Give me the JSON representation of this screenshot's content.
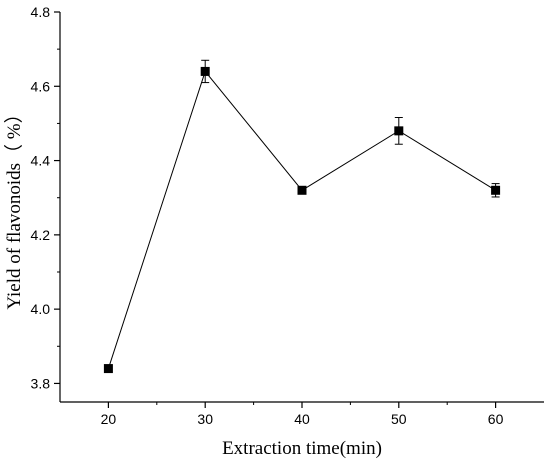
{
  "chart_data": {
    "type": "line",
    "title": "",
    "xlabel": "Extraction time(min)",
    "ylabel": "Yield of flavonoids（ %）",
    "x": [
      20,
      30,
      40,
      50,
      60
    ],
    "y": [
      3.84,
      4.64,
      4.32,
      4.48,
      4.32
    ],
    "y_error": [
      0,
      0.03,
      0.01,
      0.036,
      0.018
    ],
    "xlim": [
      15,
      65
    ],
    "ylim": [
      3.75,
      4.8
    ],
    "x_ticks": [
      20,
      30,
      40,
      50,
      60
    ],
    "y_ticks": [
      3.8,
      4.0,
      4.2,
      4.4,
      4.6,
      4.8
    ],
    "x_tick_labels": [
      "20",
      "30",
      "40",
      "50",
      "60"
    ],
    "y_tick_labels": [
      "3.8",
      "4.0",
      "4.2",
      "4.4",
      "4.6",
      "4.8"
    ],
    "grid": false,
    "marker": "square",
    "line_color": "#000000",
    "marker_color": "#000000"
  }
}
